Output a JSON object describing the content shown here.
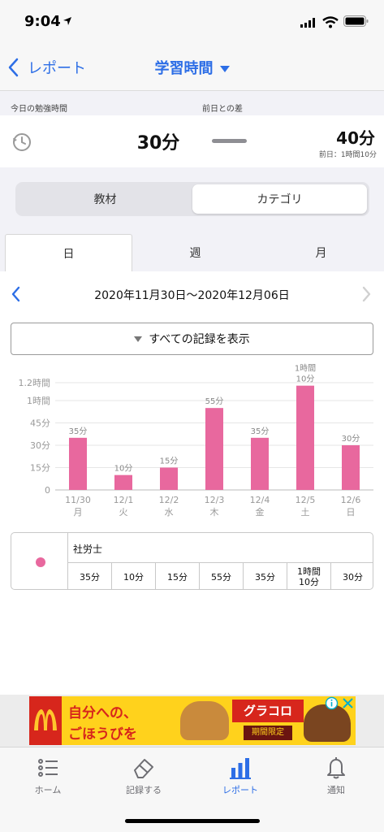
{
  "status": {
    "time": "9:04"
  },
  "nav": {
    "back_label": "レポート",
    "title": "学習時間"
  },
  "summary": {
    "today_label": "今日の勉強時間",
    "diff_label": "前日との差",
    "today_value": "30分",
    "prev_value": "40分",
    "prev_detail": "前日：1時間10分"
  },
  "segment": {
    "options": [
      "教材",
      "カテゴリ"
    ],
    "selected": "カテゴリ"
  },
  "period_tabs": {
    "tabs": [
      "日",
      "週",
      "月"
    ],
    "selected": "日"
  },
  "date_range": "2020年11月30日〜2020年12月06日",
  "filter_label": "すべての記録を表示",
  "chart_data": {
    "type": "bar",
    "categories": [
      "11/30 月",
      "12/1 火",
      "12/2 水",
      "12/3 木",
      "12/4 金",
      "12/5 土",
      "12/6 日"
    ],
    "category_dates": [
      "11/30",
      "12/1",
      "12/2",
      "12/3",
      "12/4",
      "12/5",
      "12/6"
    ],
    "category_days": [
      "月",
      "火",
      "水",
      "木",
      "金",
      "土",
      "日"
    ],
    "series": [
      {
        "name": "社労士",
        "values": [
          35,
          10,
          15,
          55,
          35,
          70,
          30
        ],
        "color": "#e8689e"
      }
    ],
    "value_labels": [
      "35分",
      "10分",
      "15分",
      "55分",
      "35分",
      "1時間\n10分",
      "30分"
    ],
    "yticks": [
      0,
      15,
      30,
      45,
      60,
      72
    ],
    "ytick_labels": [
      "0",
      "15分",
      "30分",
      "45分",
      "1時間",
      "1.2時間"
    ],
    "ylim": [
      0,
      72
    ],
    "grid": true
  },
  "legend_table": {
    "category": "社労士",
    "color": "#e8689e",
    "values": [
      "35分",
      "10分",
      "15分",
      "55分",
      "35分",
      "1時間\n10分",
      "30分"
    ]
  },
  "ad": {
    "text1": "自分への、",
    "text2": "ごほうびを",
    "brand": "グラコロ",
    "badge": "期間限定"
  },
  "tabbar": {
    "items": [
      "ホーム",
      "記録する",
      "レポート",
      "通知"
    ],
    "selected": "レポート"
  },
  "colors": {
    "accent": "#2d6ee6",
    "bar": "#e8689e"
  }
}
